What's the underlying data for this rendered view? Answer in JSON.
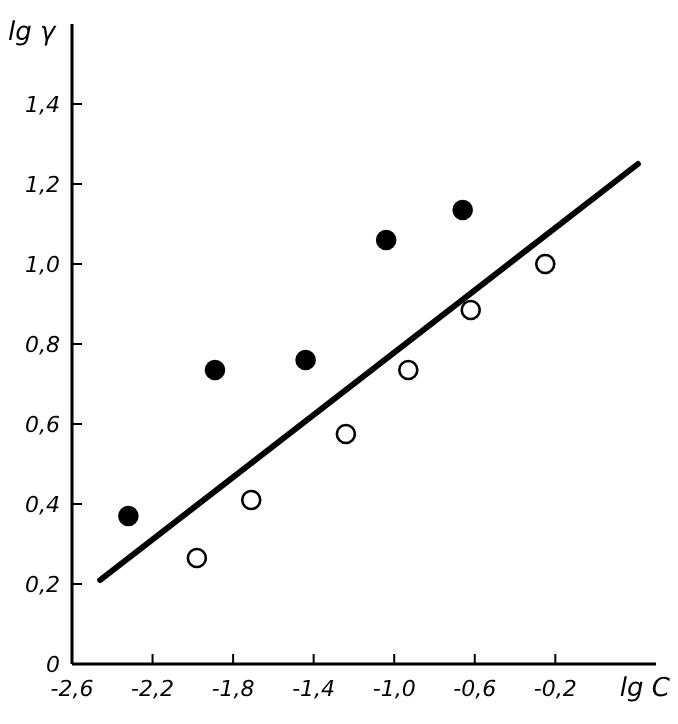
{
  "chart_data": {
    "type": "scatter",
    "xlabel": "lg C",
    "ylabel": "lg γ",
    "xlim": [
      -2.6,
      0.3
    ],
    "ylim": [
      0,
      1.6
    ],
    "xticks": [
      {
        "value": -2.6,
        "label": "-2,6"
      },
      {
        "value": -2.2,
        "label": "-2,2"
      },
      {
        "value": -1.8,
        "label": "-1,8"
      },
      {
        "value": -1.4,
        "label": "-1,4"
      },
      {
        "value": -1.0,
        "label": "-1,0"
      },
      {
        "value": -0.6,
        "label": "-0,6"
      },
      {
        "value": -0.2,
        "label": "-0,2"
      }
    ],
    "yticks": [
      0,
      {
        "value": 0.2,
        "label": "0,2"
      },
      {
        "value": 0.4,
        "label": "0,4"
      },
      {
        "value": 0.6,
        "label": "0,6"
      },
      {
        "value": 0.8,
        "label": "0,8"
      },
      {
        "value": 1.0,
        "label": "1,0"
      },
      {
        "value": 1.2,
        "label": "1,2"
      },
      {
        "value": 1.4,
        "label": "1,4"
      }
    ],
    "marker": "circle",
    "grid": false,
    "series": [
      {
        "color": "#000000",
        "x": [
          -2.32,
          -1.89,
          -1.44,
          -1.04,
          -0.66
        ],
        "values": [
          0.37,
          0.735,
          0.76,
          1.06,
          1.135
        ]
      },
      {
        "color": "#ffffff",
        "x": [
          -1.98,
          -1.71,
          -1.24,
          -0.93,
          -0.62,
          -0.25
        ],
        "values": [
          0.265,
          0.41,
          0.575,
          0.735,
          0.885,
          1.0
        ]
      },
      {
        "type": "line",
        "color": "#000000",
        "marker": "none",
        "line_style": "solid",
        "x": [
          -2.46,
          0.21
        ],
        "values": [
          0.21,
          1.25
        ]
      }
    ]
  }
}
